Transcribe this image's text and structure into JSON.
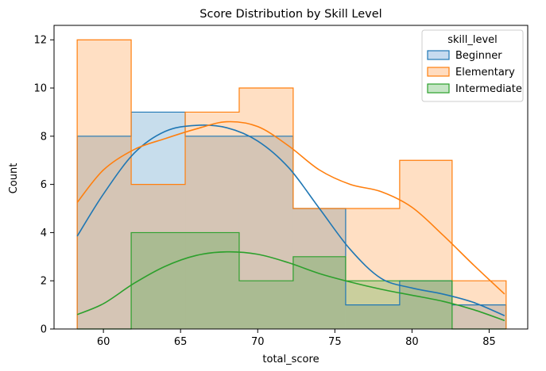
{
  "chart_data": {
    "type": "histogram",
    "title": "Score Distribution by Skill Level",
    "xlabel": "total_score",
    "ylabel": "Count",
    "xlim": [
      56.8,
      87.5
    ],
    "ylim": [
      0,
      12.6
    ],
    "xticks": [
      60,
      65,
      70,
      75,
      80,
      85
    ],
    "yticks": [
      0,
      2,
      4,
      6,
      8,
      10,
      12
    ],
    "bin_edges": [
      58.3,
      61.8,
      65.3,
      68.8,
      72.3,
      75.7,
      79.2,
      82.6,
      86.1
    ],
    "legend": {
      "title": "skill_level",
      "position": "top-right"
    },
    "series": [
      {
        "name": "Beginner",
        "color": "#1f77b4",
        "fill": "#c6dbef",
        "counts": [
          8,
          9,
          8,
          8,
          5,
          1,
          2,
          1
        ],
        "kde": {
          "x": [
            58.3,
            60,
            62,
            64,
            66,
            68,
            70,
            72,
            74,
            76,
            78,
            80,
            82,
            84,
            86
          ],
          "y": [
            3.85,
            5.6,
            7.3,
            8.2,
            8.45,
            8.35,
            7.8,
            6.7,
            5.0,
            3.3,
            2.1,
            1.7,
            1.45,
            1.1,
            0.55
          ]
        }
      },
      {
        "name": "Elementary",
        "color": "#ff7f0e",
        "fill": "#ffdcc0",
        "counts": [
          12,
          6,
          9,
          10,
          5,
          5,
          7,
          2
        ],
        "kde": {
          "x": [
            58.3,
            60,
            62,
            64,
            66,
            68,
            70,
            72,
            74,
            76,
            78,
            80,
            82,
            84,
            86
          ],
          "y": [
            5.25,
            6.6,
            7.45,
            7.9,
            8.3,
            8.6,
            8.4,
            7.6,
            6.6,
            6.0,
            5.7,
            5.05,
            3.9,
            2.65,
            1.45
          ]
        }
      },
      {
        "name": "Intermediate",
        "color": "#2ca02c",
        "fill": "#c5e5c5",
        "counts": [
          0,
          4,
          4,
          2,
          3,
          2,
          2,
          0
        ],
        "kde": {
          "x": [
            58.3,
            60,
            62,
            64,
            66,
            68,
            70,
            72,
            74,
            76,
            78,
            80,
            82,
            84,
            86
          ],
          "y": [
            0.6,
            1.05,
            1.9,
            2.6,
            3.05,
            3.2,
            3.1,
            2.75,
            2.3,
            1.95,
            1.65,
            1.4,
            1.15,
            0.8,
            0.35
          ]
        }
      }
    ]
  }
}
